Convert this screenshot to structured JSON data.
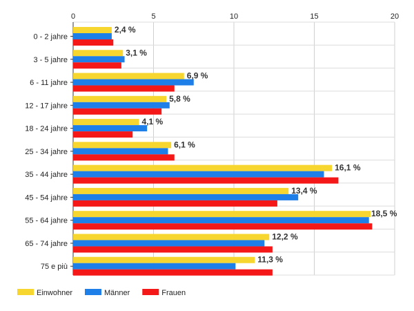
{
  "chart_data": {
    "type": "bar",
    "orientation": "horizontal",
    "title": "",
    "xlabel": "",
    "ylabel": "",
    "xlim": [
      0,
      20
    ],
    "x_ticks": [
      0,
      5,
      10,
      15,
      20
    ],
    "grid": true,
    "legend_position": "bottom-left",
    "categories": [
      "0 - 2 jahre",
      "3 - 5 jahre",
      "6 - 11 jahre",
      "12 - 17 jahre",
      "18 - 24 jahre",
      "25 - 34 jahre",
      "35 - 44 jahre",
      "45 - 54 jahre",
      "55 - 64 jahre",
      "65 - 74 jahre",
      "75 e più"
    ],
    "series": [
      {
        "name": "Einwohner",
        "color": "#f7d630",
        "values": [
          2.4,
          3.1,
          6.9,
          5.8,
          4.1,
          6.1,
          16.1,
          13.4,
          18.5,
          12.2,
          11.3
        ]
      },
      {
        "name": "Männer",
        "color": "#1f7fe8",
        "values": [
          2.4,
          3.2,
          7.5,
          6.0,
          4.6,
          5.9,
          15.6,
          14.0,
          18.4,
          11.9,
          10.1
        ]
      },
      {
        "name": "Frauen",
        "color": "#f51818",
        "values": [
          2.5,
          3.0,
          6.3,
          5.5,
          3.7,
          6.3,
          16.5,
          12.7,
          18.6,
          12.4,
          12.4
        ]
      }
    ],
    "data_labels": [
      "2,4 %",
      "3,1 %",
      "6,9 %",
      "5,8 %",
      "4,1 %",
      "6,1 %",
      "16,1 %",
      "13,4 %",
      "18,5 %",
      "12,2 %",
      "11,3 %"
    ]
  }
}
